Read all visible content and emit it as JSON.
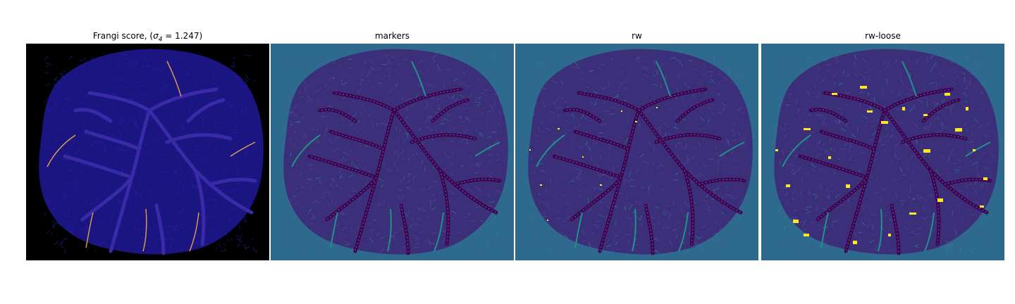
{
  "panels": [
    {
      "title_prefix": "Frangi score, (",
      "title_symbol": "σ",
      "title_subscript": "4",
      "title_suffix": " = 1.247)",
      "background": "#000000",
      "blob_fill": "#1a1580",
      "vessel_color": "#3a2aa8",
      "highlight_color": "#e0a050"
    },
    {
      "title": "markers",
      "background": "#2e6a8e",
      "blob_fill": "#3b2f7a",
      "vessel_color": "#440154",
      "highlight_color": "#21918c"
    },
    {
      "title": "rw",
      "background": "#2e6a8e",
      "blob_fill": "#3b2f7a",
      "vessel_color": "#440154",
      "highlight_color": "#21918c",
      "accent_color": "#fde725"
    },
    {
      "title": "rw-loose",
      "background": "#2e6a8e",
      "blob_fill": "#3b2f7a",
      "vessel_color": "#440154",
      "highlight_color": "#21918c",
      "accent_color": "#fde725"
    }
  ]
}
